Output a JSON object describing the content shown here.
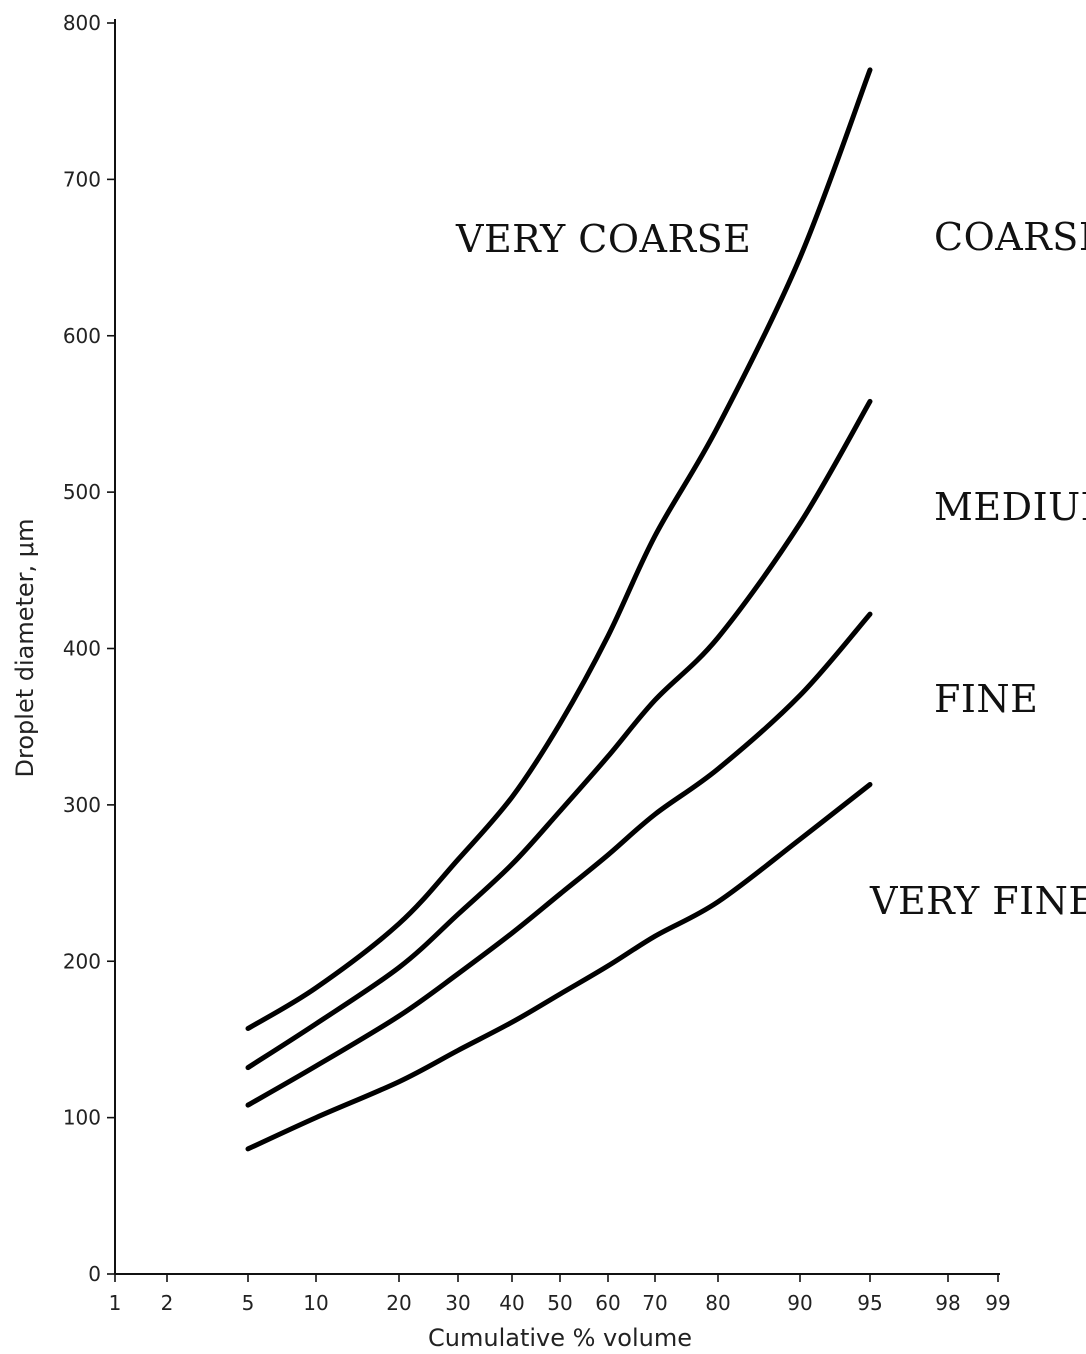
{
  "chart_data": {
    "type": "line",
    "xlabel": "Cumulative % volume",
    "ylabel": "Droplet diameter, μm",
    "x_scale": "probability",
    "xlim": [
      1,
      99
    ],
    "ylim": [
      0,
      800
    ],
    "x_ticks": [
      {
        "value": 1,
        "label": "1"
      },
      {
        "value": 2,
        "label": "2"
      },
      {
        "value": 5,
        "label": "5"
      },
      {
        "value": 10,
        "label": "10"
      },
      {
        "value": 20,
        "label": "20"
      },
      {
        "value": 30,
        "label": "30"
      },
      {
        "value": 40,
        "label": "40"
      },
      {
        "value": 50,
        "label": "50"
      },
      {
        "value": 60,
        "label": "60"
      },
      {
        "value": 70,
        "label": "70"
      },
      {
        "value": 80,
        "label": "80"
      },
      {
        "value": 90,
        "label": "90"
      },
      {
        "value": 95,
        "label": "95"
      },
      {
        "value": 98,
        "label": "98"
      },
      {
        "value": 99,
        "label": "99"
      }
    ],
    "y_ticks": [
      {
        "value": 0,
        "label": "0"
      },
      {
        "value": 100,
        "label": "100"
      },
      {
        "value": 200,
        "label": "200"
      },
      {
        "value": 300,
        "label": "300"
      },
      {
        "value": 400,
        "label": "400"
      },
      {
        "value": 500,
        "label": "500"
      },
      {
        "value": 600,
        "label": "600"
      },
      {
        "value": 700,
        "label": "700"
      },
      {
        "value": 800,
        "label": "800"
      }
    ],
    "grid": false,
    "x": [
      5,
      10,
      20,
      30,
      40,
      50,
      60,
      70,
      80,
      90,
      95
    ],
    "series": [
      {
        "values": [
          157,
          183,
          224,
          265,
          305,
          352,
          408,
          472,
          542,
          650,
          770
        ]
      },
      {
        "values": [
          132,
          160,
          196,
          230,
          262,
          296,
          331,
          367,
          407,
          480,
          558
        ]
      },
      {
        "values": [
          108,
          133,
          165,
          192,
          218,
          243,
          268,
          294,
          323,
          370,
          422
        ]
      },
      {
        "values": [
          80,
          100,
          123,
          143,
          161,
          179,
          197,
          216,
          238,
          278,
          313
        ]
      }
    ],
    "annotations": [
      {
        "text": "VERY COARSE"
      },
      {
        "text": "COARSE"
      },
      {
        "text": "MEDIUM"
      },
      {
        "text": "FINE"
      },
      {
        "text": "VERY FINE"
      }
    ]
  }
}
